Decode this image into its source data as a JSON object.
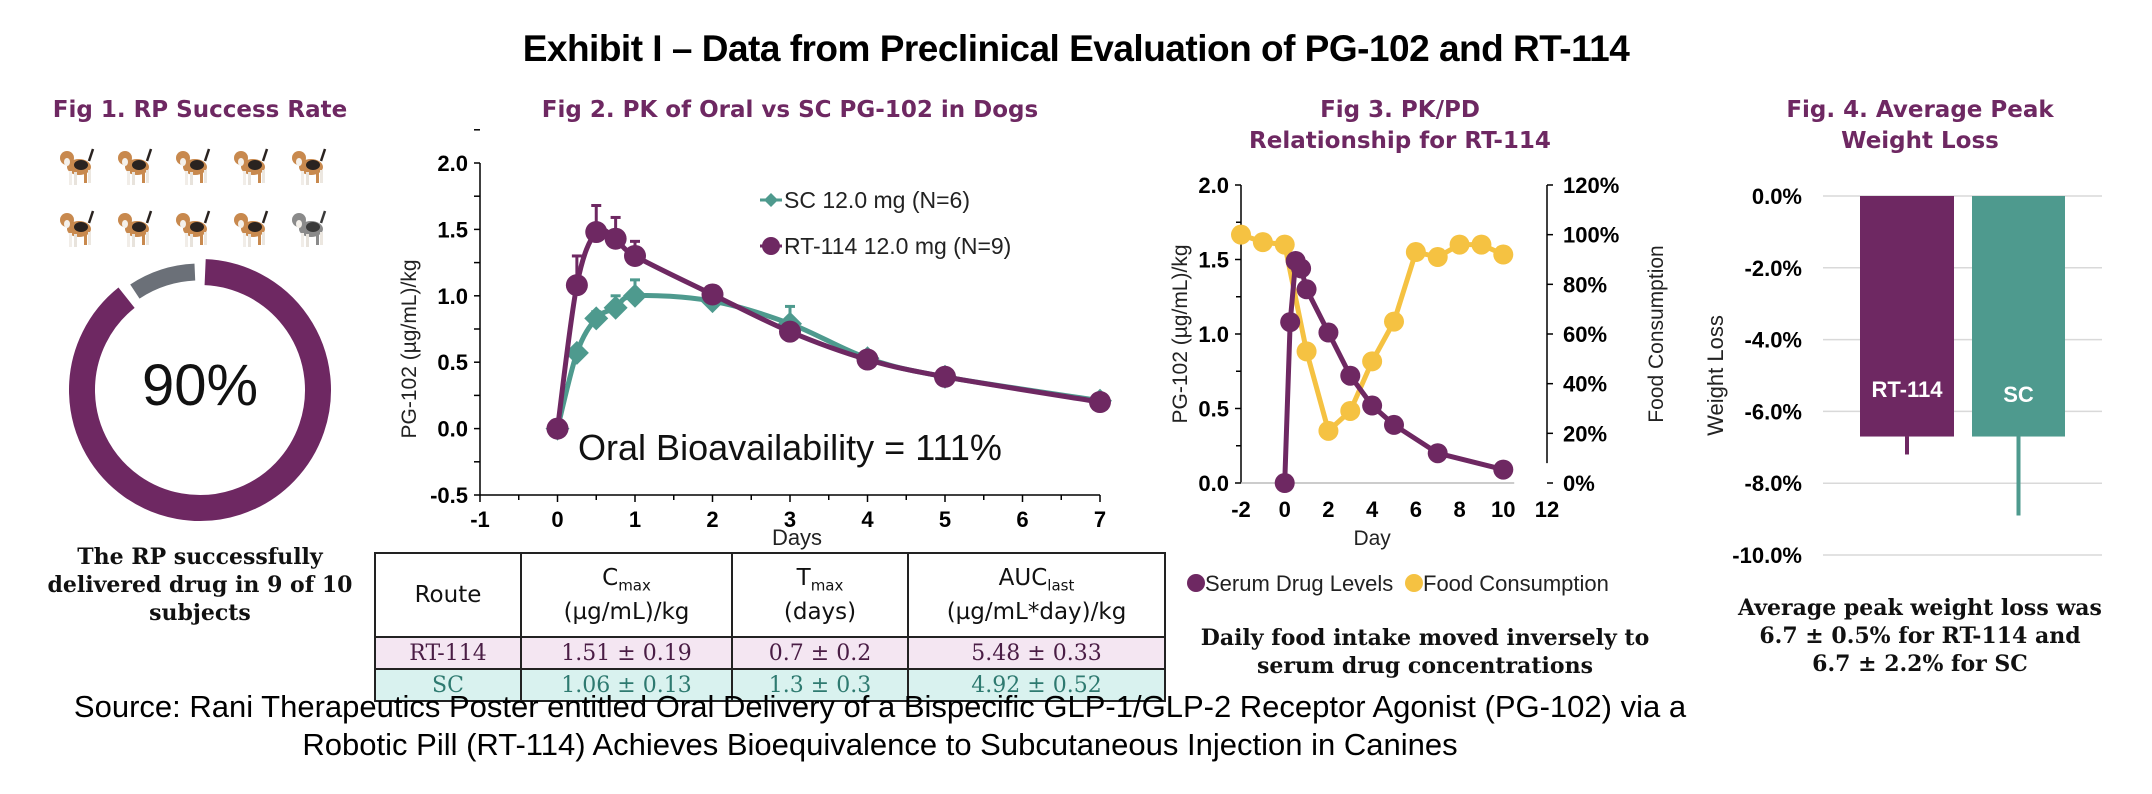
{
  "title": "Exhibit I – Data from Preclinical Evaluation of PG-102 and RT-114",
  "colors": {
    "purple": "#6e2862",
    "teal": "#4e9a8e",
    "gold": "#f5c242",
    "gray": "#6b7078"
  },
  "fig1": {
    "title": "Fig 1. RP Success Rate",
    "dogs": [
      {
        "status": "success"
      },
      {
        "status": "success"
      },
      {
        "status": "success"
      },
      {
        "status": "success"
      },
      {
        "status": "success"
      },
      {
        "status": "success"
      },
      {
        "status": "success"
      },
      {
        "status": "success"
      },
      {
        "status": "success"
      },
      {
        "status": "failure"
      }
    ],
    "percent_label": "90%",
    "caption": "The RP successfully delivered drug in 9 of 10 subjects"
  },
  "fig2": {
    "title": "Fig 2. PK of Oral vs SC PG-102 in Dogs",
    "annotation": "Oral Bioavailability = 111%",
    "table": {
      "headers": [
        {
          "main": "Route",
          "sub": "",
          "unit": ""
        },
        {
          "main": "C",
          "sub": "max",
          "unit": "(µg/mL)/kg"
        },
        {
          "main": "T",
          "sub": "max",
          "unit": "(days)"
        },
        {
          "main": "AUC",
          "sub": "last",
          "unit": "(µg/mL*day)/kg"
        }
      ],
      "rows": [
        {
          "route": "RT-114",
          "cmax": "1.51 ± 0.19",
          "tmax": "0.7 ± 0.2",
          "auc": "5.48 ± 0.33"
        },
        {
          "route": "SC",
          "cmax": "1.06 ± 0.13",
          "tmax": "1.3 ± 0.3",
          "auc": "4.92 ± 0.52"
        }
      ]
    }
  },
  "fig3": {
    "title_line1": "Fig 3. PK/PD",
    "title_line2": "Relationship for RT-114",
    "caption": "Daily food intake moved inversely to serum drug concentrations"
  },
  "fig4": {
    "title_line1": "Fig. 4. Average Peak",
    "title_line2": "Weight Loss",
    "caption_line1": "Average peak weight loss was",
    "caption_line2": "6.7 ± 0.5% for RT-114 and",
    "caption_line3": "6.7 ± 2.2% for SC"
  },
  "source_line1": "Source: Rani Therapeutics Poster entitled Oral Delivery of a Bispecific GLP-1/GLP-2 Receptor Agonist (PG-102) via a",
  "source_line2": "Robotic Pill (RT-114) Achieves Bioequivalence to Subcutaneous Injection in Canines",
  "chart_data": [
    {
      "id": "fig1",
      "type": "pie",
      "title": "Fig 1. RP Success Rate",
      "categories": [
        "Successful delivery",
        "Unsuccessful"
      ],
      "values": [
        90,
        10
      ],
      "center_label": "90%"
    },
    {
      "id": "fig2",
      "type": "line",
      "title": "Fig 2. PK of Oral vs SC PG-102 in Dogs",
      "xlabel": "Days",
      "ylabel": "PG-102 (µg/mL)/kg",
      "xlim": [
        -1,
        7
      ],
      "ylim": [
        -0.5,
        2.0
      ],
      "xticks": [
        "-1",
        "0",
        "1",
        "2",
        "3",
        "4",
        "5",
        "6",
        "7"
      ],
      "yticks": [
        "-0.5",
        "0.0",
        "0.5",
        "1.0",
        "1.5",
        "2.0"
      ],
      "legend_position": "top-right",
      "series": [
        {
          "name": "SC 12.0 mg (N=6)",
          "marker": "diamond",
          "x": [
            0,
            0.25,
            0.5,
            0.75,
            1,
            2,
            3,
            4,
            5,
            7
          ],
          "y": [
            0.0,
            0.57,
            0.83,
            0.91,
            1.0,
            0.96,
            0.79,
            0.53,
            0.39,
            0.21
          ],
          "error_upper": [
            0,
            0.03,
            0.05,
            0.09,
            0.12,
            0.08,
            0.13,
            0.02,
            0.02,
            0.02
          ]
        },
        {
          "name": "RT-114 12.0 mg (N=9)",
          "marker": "circle",
          "x": [
            0,
            0.25,
            0.5,
            0.75,
            1,
            2,
            3,
            4,
            5,
            7
          ],
          "y": [
            0.0,
            1.08,
            1.48,
            1.43,
            1.3,
            1.01,
            0.73,
            0.52,
            0.39,
            0.2
          ],
          "error_upper": [
            0,
            0.22,
            0.2,
            0.16,
            0.11,
            0.04,
            0.02,
            0.02,
            0.02,
            0.02
          ]
        }
      ]
    },
    {
      "id": "fig3",
      "type": "line",
      "title": "Fig 3. PK/PD Relationship for RT-114",
      "xlabel": "Day",
      "ylabel": "PG-102 (µg/mL)/kg",
      "y2label": "Food Consumption",
      "xlim": [
        -2,
        12
      ],
      "ylim": [
        0,
        2.0
      ],
      "y2lim": [
        0,
        120
      ],
      "xticks": [
        "-2",
        "0",
        "2",
        "4",
        "6",
        "8",
        "10",
        "12"
      ],
      "yticks": [
        "0.0",
        "0.5",
        "1.0",
        "1.5",
        "2.0"
      ],
      "y2ticks": [
        "0%",
        "20%",
        "40%",
        "60%",
        "80%",
        "100%",
        "120%"
      ],
      "legend_position": "bottom",
      "series": [
        {
          "name": "Serum Drug Levels",
          "axis": "left",
          "x": [
            0,
            0.25,
            0.5,
            0.75,
            1,
            2,
            3,
            4,
            5,
            7,
            10
          ],
          "y": [
            0.0,
            1.08,
            1.49,
            1.44,
            1.3,
            1.01,
            0.72,
            0.52,
            0.39,
            0.2,
            0.09
          ]
        },
        {
          "name": "Food Consumption",
          "axis": "right",
          "x": [
            -2,
            -1,
            0,
            1,
            2,
            3,
            4,
            5,
            6,
            7,
            8,
            9,
            10
          ],
          "y": [
            100,
            97,
            96,
            53,
            21,
            29,
            49,
            65,
            93,
            91,
            96,
            96,
            92
          ]
        }
      ]
    },
    {
      "id": "fig4",
      "type": "bar",
      "title": "Fig. 4. Average Peak Weight Loss",
      "ylabel": "Weight Loss",
      "categories": [
        "RT-114",
        "SC"
      ],
      "values": [
        -6.7,
        -6.7
      ],
      "error": [
        0.5,
        2.2
      ],
      "ylim": [
        -10.0,
        0.0
      ],
      "yticks": [
        "0.0%",
        "-2.0%",
        "-4.0%",
        "-6.0%",
        "-8.0%",
        "-10.0%"
      ],
      "grid": true
    }
  ]
}
